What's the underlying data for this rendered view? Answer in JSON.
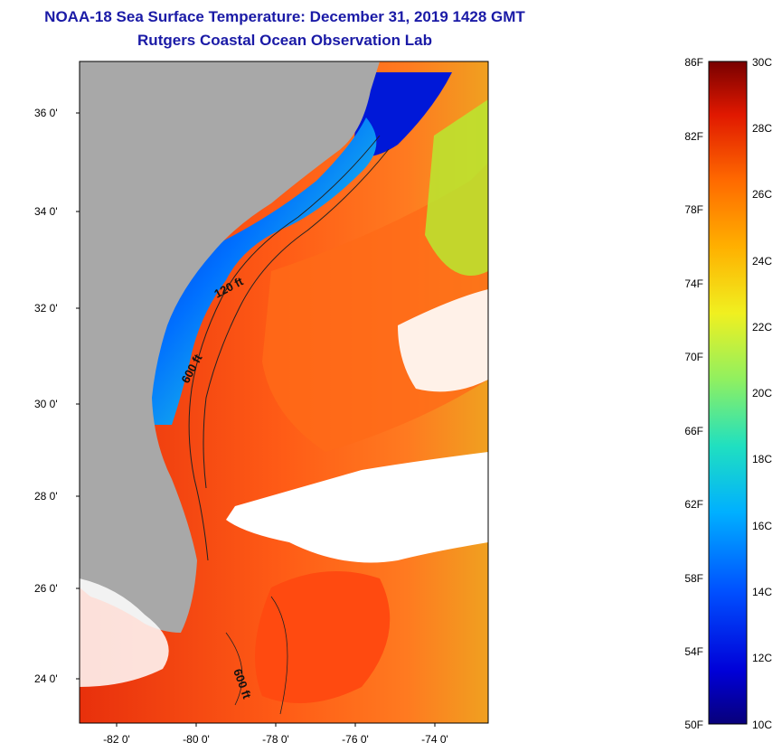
{
  "title": {
    "line1": "NOAA-18 Sea Surface Temperature:  December 31, 2019 1428 GMT",
    "line2": "Rutgers Coastal Ocean Observation Lab"
  },
  "map": {
    "lat_labels": [
      "36 0'",
      "34 0'",
      "32 0'",
      "30 0'",
      "28 0'",
      "26 0'",
      "24 0'"
    ],
    "lon_labels": [
      "-82 0'",
      "-80 0'",
      "-78 0'",
      "-76 0'",
      "-74 0'"
    ],
    "contour_labels": [
      "120 ft",
      "600 ft",
      "600 ft"
    ],
    "colors": {
      "land": "#a8a8a8",
      "cloud": "#ffffff",
      "warm": "#ff5a14",
      "hot": "#e8280a",
      "cool": "#1e8cff",
      "cold": "#0a1ee6"
    }
  },
  "colorbar": {
    "fahrenheit_labels": [
      "86F",
      "82F",
      "78F",
      "74F",
      "70F",
      "66F",
      "62F",
      "58F",
      "54F",
      "50F"
    ],
    "celsius_labels": [
      "30C",
      "28C",
      "26C",
      "24C",
      "22C",
      "20C",
      "18C",
      "16C",
      "14C",
      "12C",
      "10C"
    ]
  }
}
